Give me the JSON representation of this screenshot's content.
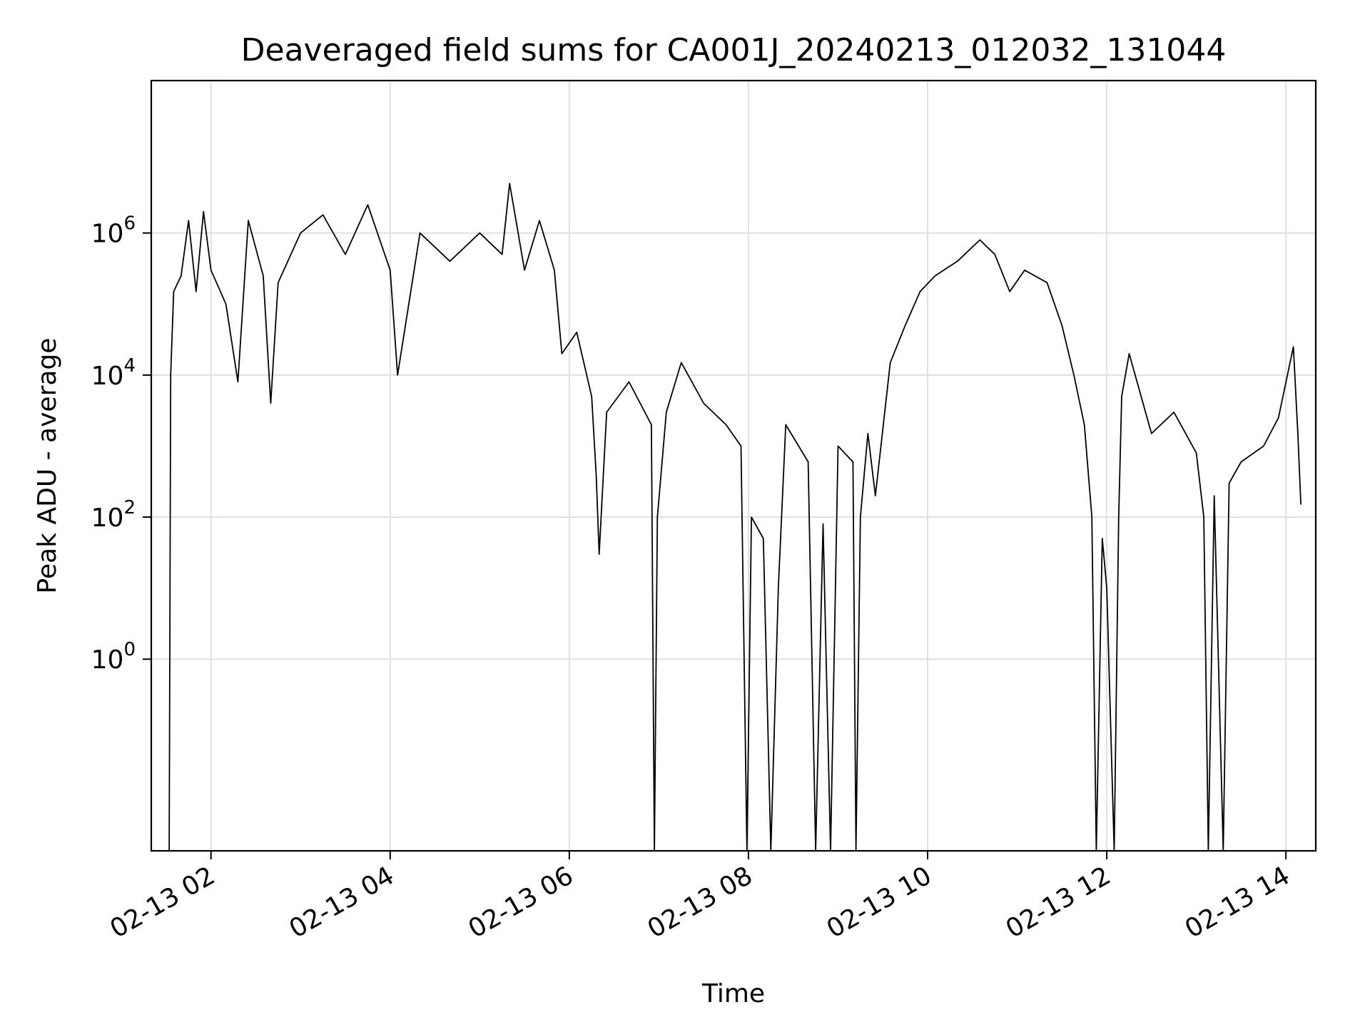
{
  "chart_data": {
    "type": "line",
    "title": "Deaveraged field sums for CA001J_20240213_012032_131044",
    "xlabel": "Time",
    "ylabel": "Peak ADU - average",
    "yscale": "log",
    "grid": true,
    "line_color": "#000000",
    "grid_color": "#e0e0e0",
    "xlim": [
      "2024-02-13 01:20",
      "2024-02-13 14:20"
    ],
    "ylim": [
      0.002,
      140000000
    ],
    "x_ticks": [
      {
        "value": "2024-02-13 02:00",
        "label": "02-13 02"
      },
      {
        "value": "2024-02-13 04:00",
        "label": "02-13 04"
      },
      {
        "value": "2024-02-13 06:00",
        "label": "02-13 06"
      },
      {
        "value": "2024-02-13 08:00",
        "label": "02-13 08"
      },
      {
        "value": "2024-02-13 10:00",
        "label": "02-13 10"
      },
      {
        "value": "2024-02-13 12:00",
        "label": "02-13 12"
      },
      {
        "value": "2024-02-13 14:00",
        "label": "02-13 14"
      }
    ],
    "y_ticks": [
      {
        "value": 1,
        "base": "10",
        "exp": "0"
      },
      {
        "value": 100,
        "base": "10",
        "exp": "2"
      },
      {
        "value": 10000,
        "base": "10",
        "exp": "4"
      },
      {
        "value": 1000000,
        "base": "10",
        "exp": "6"
      }
    ],
    "series": [
      {
        "points": [
          [
            "2024-02-13 01:32",
            0.001
          ],
          [
            "2024-02-13 01:33",
            10000
          ],
          [
            "2024-02-13 01:35",
            150000
          ],
          [
            "2024-02-13 01:40",
            250000
          ],
          [
            "2024-02-13 01:45",
            1500000
          ],
          [
            "2024-02-13 01:50",
            150000
          ],
          [
            "2024-02-13 01:55",
            2000000
          ],
          [
            "2024-02-13 02:00",
            300000
          ],
          [
            "2024-02-13 02:10",
            100000
          ],
          [
            "2024-02-13 02:18",
            8000
          ],
          [
            "2024-02-13 02:25",
            1500000
          ],
          [
            "2024-02-13 02:35",
            250000
          ],
          [
            "2024-02-13 02:40",
            4000
          ],
          [
            "2024-02-13 02:45",
            200000
          ],
          [
            "2024-02-13 03:00",
            1000000
          ],
          [
            "2024-02-13 03:15",
            1800000
          ],
          [
            "2024-02-13 03:30",
            500000
          ],
          [
            "2024-02-13 03:45",
            2500000
          ],
          [
            "2024-02-13 04:00",
            300000
          ],
          [
            "2024-02-13 04:05",
            10000
          ],
          [
            "2024-02-13 04:20",
            1000000
          ],
          [
            "2024-02-13 04:40",
            400000
          ],
          [
            "2024-02-13 05:00",
            1000000
          ],
          [
            "2024-02-13 05:15",
            500000
          ],
          [
            "2024-02-13 05:20",
            5000000
          ],
          [
            "2024-02-13 05:30",
            300000
          ],
          [
            "2024-02-13 05:40",
            1500000
          ],
          [
            "2024-02-13 05:50",
            300000
          ],
          [
            "2024-02-13 05:55",
            20000
          ],
          [
            "2024-02-13 06:05",
            40000
          ],
          [
            "2024-02-13 06:15",
            5000
          ],
          [
            "2024-02-13 06:18",
            400
          ],
          [
            "2024-02-13 06:20",
            30
          ],
          [
            "2024-02-13 06:25",
            3000
          ],
          [
            "2024-02-13 06:40",
            8000
          ],
          [
            "2024-02-13 06:55",
            2000
          ],
          [
            "2024-02-13 06:57",
            0.001
          ],
          [
            "2024-02-13 06:59",
            100
          ],
          [
            "2024-02-13 07:05",
            3000
          ],
          [
            "2024-02-13 07:15",
            15000
          ],
          [
            "2024-02-13 07:30",
            4000
          ],
          [
            "2024-02-13 07:45",
            2000
          ],
          [
            "2024-02-13 07:55",
            1000
          ],
          [
            "2024-02-13 07:59",
            0.001
          ],
          [
            "2024-02-13 08:02",
            100
          ],
          [
            "2024-02-13 08:10",
            50
          ],
          [
            "2024-02-13 08:15",
            0.001
          ],
          [
            "2024-02-13 08:20",
            10
          ],
          [
            "2024-02-13 08:25",
            2000
          ],
          [
            "2024-02-13 08:40",
            600
          ],
          [
            "2024-02-13 08:45",
            0.001
          ],
          [
            "2024-02-13 08:50",
            80
          ],
          [
            "2024-02-13 08:55",
            0.001
          ],
          [
            "2024-02-13 09:00",
            1000
          ],
          [
            "2024-02-13 09:10",
            600
          ],
          [
            "2024-02-13 09:12",
            0.001
          ],
          [
            "2024-02-13 09:15",
            100
          ],
          [
            "2024-02-13 09:20",
            1500
          ],
          [
            "2024-02-13 09:25",
            200
          ],
          [
            "2024-02-13 09:35",
            15000
          ],
          [
            "2024-02-13 09:45",
            50000
          ],
          [
            "2024-02-13 09:55",
            150000
          ],
          [
            "2024-02-13 10:05",
            250000
          ],
          [
            "2024-02-13 10:20",
            400000
          ],
          [
            "2024-02-13 10:35",
            800000
          ],
          [
            "2024-02-13 10:45",
            500000
          ],
          [
            "2024-02-13 10:55",
            150000
          ],
          [
            "2024-02-13 11:05",
            300000
          ],
          [
            "2024-02-13 11:20",
            200000
          ],
          [
            "2024-02-13 11:30",
            50000
          ],
          [
            "2024-02-13 11:38",
            10000
          ],
          [
            "2024-02-13 11:45",
            2000
          ],
          [
            "2024-02-13 11:50",
            100
          ],
          [
            "2024-02-13 11:53",
            0.001
          ],
          [
            "2024-02-13 11:57",
            50
          ],
          [
            "2024-02-13 12:00",
            10
          ],
          [
            "2024-02-13 12:05",
            0.001
          ],
          [
            "2024-02-13 12:08",
            100
          ],
          [
            "2024-02-13 12:10",
            5000
          ],
          [
            "2024-02-13 12:15",
            20000
          ],
          [
            "2024-02-13 12:30",
            1500
          ],
          [
            "2024-02-13 12:45",
            3000
          ],
          [
            "2024-02-13 13:00",
            800
          ],
          [
            "2024-02-13 13:05",
            100
          ],
          [
            "2024-02-13 13:08",
            0.001
          ],
          [
            "2024-02-13 13:12",
            200
          ],
          [
            "2024-02-13 13:18",
            0.001
          ],
          [
            "2024-02-13 13:22",
            300
          ],
          [
            "2024-02-13 13:30",
            600
          ],
          [
            "2024-02-13 13:45",
            1000
          ],
          [
            "2024-02-13 13:55",
            2500
          ],
          [
            "2024-02-13 14:05",
            25000
          ],
          [
            "2024-02-13 14:08",
            1500
          ],
          [
            "2024-02-13 14:10",
            150
          ]
        ]
      }
    ]
  }
}
